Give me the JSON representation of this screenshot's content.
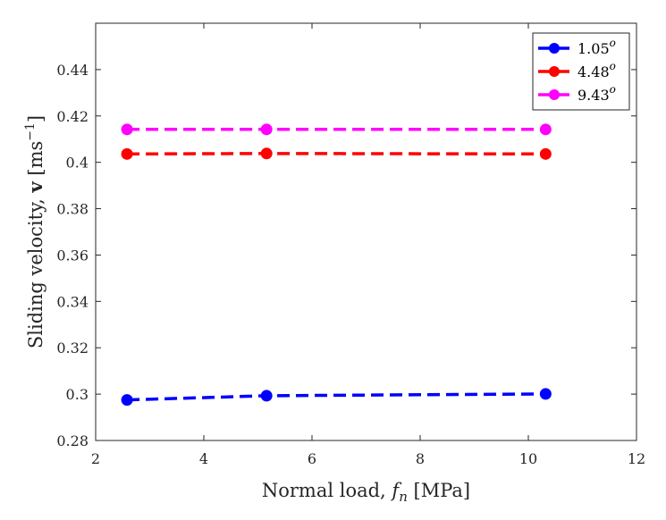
{
  "chart_data": {
    "type": "line",
    "xlabel": "Normal load, f_n [MPa]",
    "xlabel_parts": {
      "pre": "Normal load, ",
      "var": "f",
      "sub": "n",
      "post": " [MPa]"
    },
    "ylabel": "Sliding velocity, v [ms^-1]",
    "ylabel_parts": {
      "pre": "Sliding velocity, ",
      "bold": "v",
      "mid": " [ms",
      "sup": "−1",
      "post": "]"
    },
    "xlim": [
      2,
      12
    ],
    "ylim": [
      0.28,
      0.46
    ],
    "x_ticks": [
      2,
      4,
      6,
      8,
      10,
      12
    ],
    "x_tick_labels": [
      "2",
      "4",
      "6",
      "8",
      "10",
      "12"
    ],
    "y_ticks": [
      0.28,
      0.3,
      0.32,
      0.34,
      0.36,
      0.38,
      0.4,
      0.42,
      0.44
    ],
    "y_tick_labels": [
      "0.28",
      "0.3",
      "0.32",
      "0.34",
      "0.36",
      "0.38",
      "0.4",
      "0.42",
      "0.44"
    ],
    "grid": false,
    "legend_position": "top-right",
    "x": [
      2.58,
      5.16,
      10.32
    ],
    "series": [
      {
        "name": "1.05",
        "name_sup": "o",
        "color": "#0000ff",
        "values": [
          0.2975,
          0.2993,
          0.3001
        ]
      },
      {
        "name": "4.48",
        "name_sup": "o",
        "color": "#ff0000",
        "values": [
          0.4036,
          0.4038,
          0.4036
        ]
      },
      {
        "name": "9.43",
        "name_sup": "o",
        "color": "#ff00ff",
        "values": [
          0.4142,
          0.4142,
          0.4142
        ]
      }
    ]
  }
}
